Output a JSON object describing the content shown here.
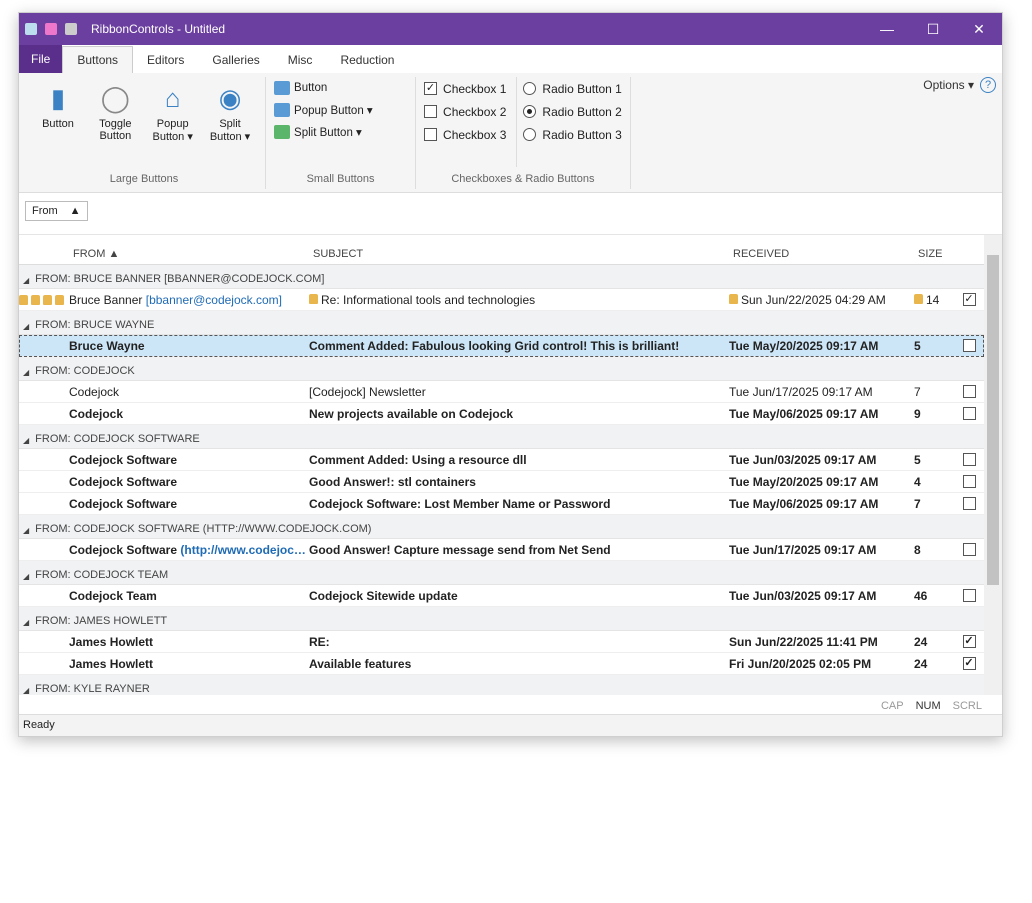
{
  "window": {
    "title": "RibbonControls - Untitled",
    "minimize": "—",
    "maximize": "☐",
    "close": "✕"
  },
  "tabs": [
    {
      "label": "File"
    },
    {
      "label": "Buttons"
    },
    {
      "label": "Editors"
    },
    {
      "label": "Galleries"
    },
    {
      "label": "Misc"
    },
    {
      "label": "Reduction"
    }
  ],
  "options": {
    "label": "Options ▾",
    "help": "?"
  },
  "ribbon": {
    "large": {
      "label": "Large Buttons",
      "items": [
        "Button",
        "Toggle Button",
        "Popup Button ▾",
        "Split Button ▾"
      ]
    },
    "small": {
      "label": "Small Buttons",
      "items": [
        "Button",
        "Popup Button ▾",
        "Split Button ▾"
      ]
    },
    "checks": {
      "label": "Checkboxes & Radio Buttons",
      "checkboxes": [
        {
          "label": "Checkbox 1",
          "checked": true
        },
        {
          "label": "Checkbox 2",
          "checked": false
        },
        {
          "label": "Checkbox 3",
          "checked": false
        }
      ],
      "radios": [
        {
          "label": "Radio Button 1"
        },
        {
          "label": "Radio Button 2",
          "selected": true
        },
        {
          "label": "Radio Button 3"
        }
      ]
    }
  },
  "groupby": {
    "label": "From",
    "arrow": "▲"
  },
  "columns": {
    "from": "FROM ▲",
    "subject": "SUBJECT",
    "received": "RECEIVED",
    "size": "SIZE"
  },
  "groups": [
    {
      "label": "FROM: BRUCE BANNER [BBANNER@CODEJOCK.COM]",
      "rows": [
        {
          "from": "Bruce Banner",
          "email": "[bbanner@codejock.com]",
          "subject": "Re: Informational tools and technologies",
          "received": "Sun Jun/22/2025 04:29 AM",
          "size": "14",
          "checked": true,
          "bold": false,
          "locked": true
        }
      ]
    },
    {
      "label": "FROM: BRUCE WAYNE",
      "rows": [
        {
          "from": "Bruce Wayne",
          "subject": "Comment Added: Fabulous looking Grid control! This is brilliant!",
          "received": "Tue May/20/2025 09:17 AM",
          "size": "5",
          "checked": false,
          "bold": true,
          "selected": true
        }
      ]
    },
    {
      "label": "FROM: CODEJOCK",
      "rows": [
        {
          "from": "Codejock",
          "subject": "[Codejock] Newsletter",
          "received": "Tue Jun/17/2025 09:17 AM",
          "size": "7",
          "checked": false,
          "bold": false
        },
        {
          "from": "Codejock",
          "subject": "New projects available on Codejock",
          "received": "Tue May/06/2025 09:17 AM",
          "size": "9",
          "checked": false,
          "bold": true
        }
      ]
    },
    {
      "label": "FROM: CODEJOCK SOFTWARE",
      "rows": [
        {
          "from": "Codejock Software",
          "subject": "Comment Added: Using a resource dll",
          "received": "Tue Jun/03/2025 09:17 AM",
          "size": "5",
          "checked": false,
          "bold": true
        },
        {
          "from": "Codejock Software",
          "subject": "Good Answer!: stl containers",
          "received": "Tue May/20/2025 09:17 AM",
          "size": "4",
          "checked": false,
          "bold": true
        },
        {
          "from": "Codejock Software",
          "subject": "Codejock Software:  Lost Member Name or Password",
          "received": "Tue May/06/2025 09:17 AM",
          "size": "7",
          "checked": false,
          "bold": true
        }
      ]
    },
    {
      "label": "FROM: CODEJOCK SOFTWARE (HTTP://WWW.CODEJOCK.COM)",
      "rows": [
        {
          "from": "Codejock Software",
          "email": "(http://www.codejoc…",
          "subject": "Good Answer! Capture message send from Net Send",
          "received": "Tue Jun/17/2025 09:17 AM",
          "size": "8",
          "checked": false,
          "bold": true
        }
      ]
    },
    {
      "label": "FROM: CODEJOCK TEAM",
      "rows": [
        {
          "from": "Codejock Team",
          "subject": "Codejock Sitewide update",
          "received": "Tue Jun/03/2025 09:17 AM",
          "size": "46",
          "checked": false,
          "bold": true
        }
      ]
    },
    {
      "label": "FROM: JAMES HOWLETT",
      "rows": [
        {
          "from": "James Howlett",
          "subject": "RE:",
          "received": "Sun Jun/22/2025 11:41 PM",
          "size": "24",
          "checked": true,
          "bold": true
        },
        {
          "from": "James Howlett",
          "subject": "Available features",
          "received": "Fri Jun/20/2025 02:05 PM",
          "size": "24",
          "checked": true,
          "bold": true
        }
      ]
    },
    {
      "label": "FROM: KYLE RAYNER",
      "rows": []
    }
  ],
  "indicators": {
    "cap": "CAP",
    "num": "NUM",
    "scrl": "SCRL"
  },
  "status": "Ready",
  "colors": {
    "titlebar": "#6b3fa0",
    "selection": "#cde6f7",
    "accent": "#3b82c4"
  }
}
